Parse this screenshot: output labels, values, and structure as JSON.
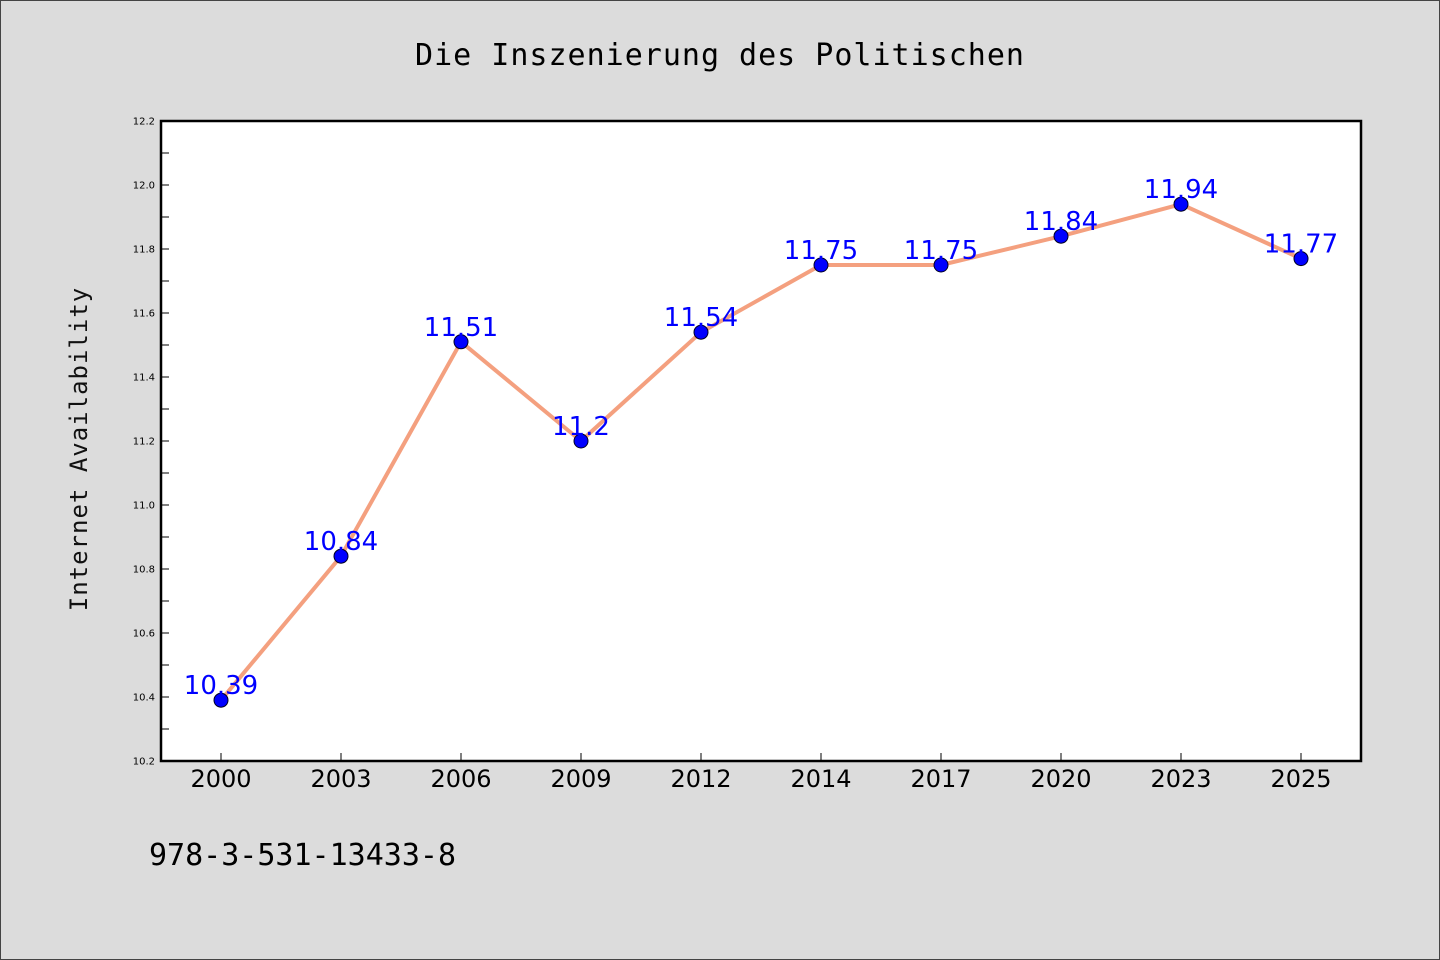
{
  "chart_data": {
    "type": "line",
    "title": "Die Inszenierung des Politischen",
    "xlabel": "",
    "ylabel": "Internet Availability",
    "categories": [
      "2000",
      "2003",
      "2006",
      "2009",
      "2012",
      "2014",
      "2017",
      "2020",
      "2023",
      "2025"
    ],
    "series": [
      {
        "values": [
          10.39,
          10.84,
          11.51,
          11.2,
          11.54,
          11.75,
          11.75,
          11.84,
          11.94,
          11.77
        ]
      }
    ],
    "data_labels": [
      "10.39",
      "10.84",
      "11.51",
      "11.2",
      "11.54",
      "11.75",
      "11.75",
      "11.84",
      "11.94",
      "11.77"
    ],
    "ylim": [
      10.2,
      12.2
    ],
    "yticks": [
      "10.2",
      "10.4",
      "10.6",
      "10.8",
      "11.0",
      "11.2",
      "11.4",
      "11.6",
      "11.8",
      "12.0",
      "12.2"
    ],
    "grid": false,
    "legend": "none",
    "colors": {
      "line": "#f4a07f",
      "marker": "#0000ff",
      "labels": "#0000ff",
      "background": "#dcdcdc",
      "plot": "#ffffff"
    }
  },
  "footer": {
    "isbn": "978-3-531-13433-8"
  }
}
